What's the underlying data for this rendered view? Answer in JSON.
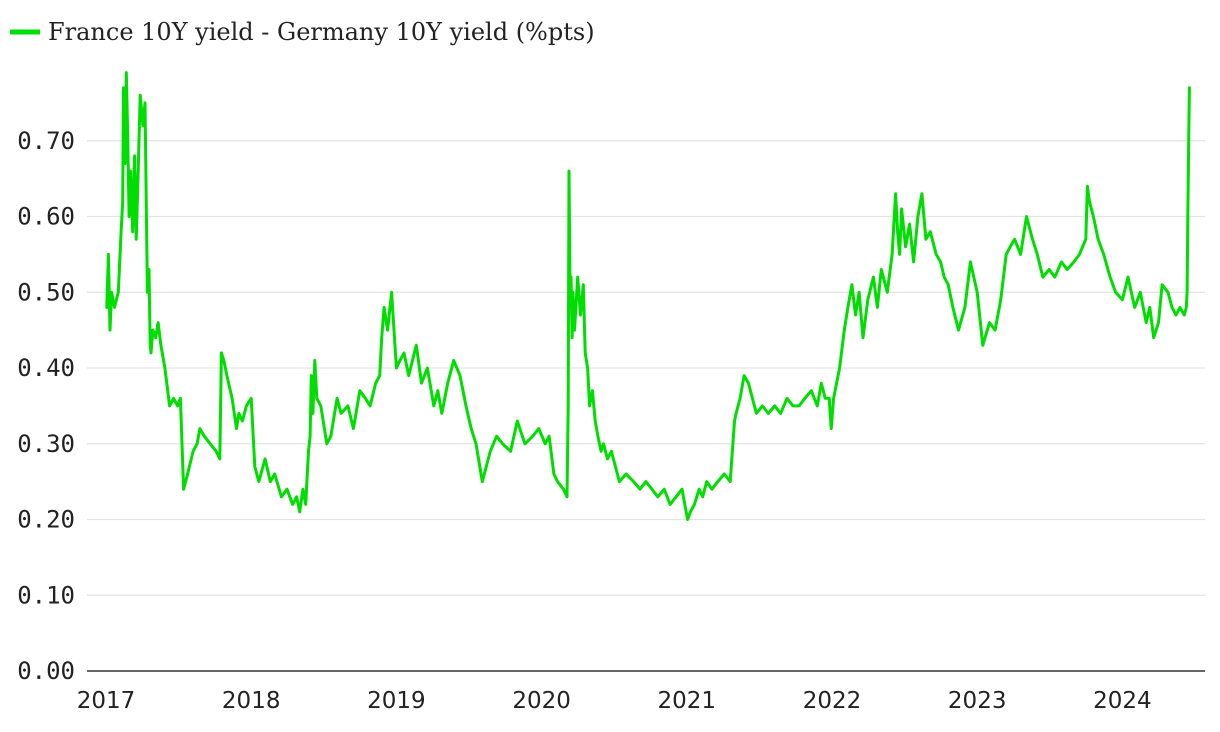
{
  "chart_data": {
    "type": "line",
    "title": "",
    "xlabel": "",
    "ylabel": "",
    "legend_position": "top-left",
    "grid": true,
    "ylim": [
      0.0,
      0.8
    ],
    "xlim": [
      "2017-01-01",
      "2024-07-01"
    ],
    "y_ticks": [
      "0.00",
      "0.10",
      "0.20",
      "0.30",
      "0.40",
      "0.50",
      "0.60",
      "0.70"
    ],
    "y_tick_values": [
      0.0,
      0.1,
      0.2,
      0.3,
      0.4,
      0.5,
      0.6,
      0.7
    ],
    "x_ticks": [
      "2017",
      "2018",
      "2019",
      "2020",
      "2021",
      "2022",
      "2023",
      "2024"
    ],
    "x_tick_values": [
      2017,
      2018,
      2019,
      2020,
      2021,
      2022,
      2023,
      2024
    ],
    "series": [
      {
        "name": "France 10Y yield - Germany 10Y yield (%pts)",
        "color": "#00dd00",
        "x": [
          "2017-01-03",
          "2017-01-07",
          "2017-01-11",
          "2017-01-15",
          "2017-01-22",
          "2017-02-01",
          "2017-02-08",
          "2017-02-12",
          "2017-02-14",
          "2017-02-18",
          "2017-02-21",
          "2017-02-24",
          "2017-02-28",
          "2017-03-04",
          "2017-03-09",
          "2017-03-14",
          "2017-03-18",
          "2017-03-23",
          "2017-03-28",
          "2017-04-04",
          "2017-04-09",
          "2017-04-15",
          "2017-04-19",
          "2017-04-22",
          "2017-04-24",
          "2017-04-29",
          "2017-05-06",
          "2017-05-12",
          "2017-05-19",
          "2017-05-29",
          "2017-06-10",
          "2017-06-20",
          "2017-06-30",
          "2017-07-07",
          "2017-07-15",
          "2017-07-25",
          "2017-08-08",
          "2017-08-18",
          "2017-08-25",
          "2017-09-05",
          "2017-09-20",
          "2017-10-05",
          "2017-10-14",
          "2017-10-18",
          "2017-10-24",
          "2017-11-01",
          "2017-11-14",
          "2017-11-25",
          "2017-12-01",
          "2017-12-10",
          "2017-12-20",
          "2018-01-01",
          "2018-01-10",
          "2018-01-20",
          "2018-02-05",
          "2018-02-18",
          "2018-03-01",
          "2018-03-18",
          "2018-04-01",
          "2018-04-15",
          "2018-04-25",
          "2018-05-03",
          "2018-05-11",
          "2018-05-18",
          "2018-05-25",
          "2018-05-29",
          "2018-06-01",
          "2018-06-05",
          "2018-06-10",
          "2018-06-15",
          "2018-06-25",
          "2018-07-10",
          "2018-07-20",
          "2018-08-05",
          "2018-08-15",
          "2018-09-01",
          "2018-09-15",
          "2018-10-01",
          "2018-10-15",
          "2018-10-27",
          "2018-11-10",
          "2018-11-20",
          "2018-11-25",
          "2018-12-01",
          "2018-12-10",
          "2018-12-20",
          "2019-01-01",
          "2019-01-10",
          "2019-01-20",
          "2019-02-01",
          "2019-02-20",
          "2019-03-05",
          "2019-03-20",
          "2019-04-05",
          "2019-04-15",
          "2019-04-25",
          "2019-05-10",
          "2019-05-25",
          "2019-06-10",
          "2019-06-25",
          "2019-07-08",
          "2019-07-20",
          "2019-08-05",
          "2019-08-15",
          "2019-08-25",
          "2019-09-10",
          "2019-09-25",
          "2019-10-15",
          "2019-11-01",
          "2019-11-20",
          "2019-12-10",
          "2019-12-25",
          "2020-01-10",
          "2020-01-20",
          "2020-02-01",
          "2020-02-10",
          "2020-02-25",
          "2020-03-05",
          "2020-03-08",
          "2020-03-10",
          "2020-03-13",
          "2020-03-15",
          "2020-03-18",
          "2020-03-20",
          "2020-03-24",
          "2020-04-01",
          "2020-04-08",
          "2020-04-15",
          "2020-04-20",
          "2020-04-26",
          "2020-05-01",
          "2020-05-08",
          "2020-05-15",
          "2020-05-22",
          "2020-05-30",
          "2020-06-05",
          "2020-06-15",
          "2020-06-25",
          "2020-07-05",
          "2020-07-15",
          "2020-08-01",
          "2020-08-20",
          "2020-09-05",
          "2020-09-20",
          "2020-10-05",
          "2020-10-20",
          "2020-11-05",
          "2020-11-20",
          "2020-12-05",
          "2020-12-20",
          "2021-01-03",
          "2021-01-10",
          "2021-01-20",
          "2021-02-01",
          "2021-02-10",
          "2021-02-20",
          "2021-03-05",
          "2021-03-20",
          "2021-04-05",
          "2021-04-20",
          "2021-05-01",
          "2021-05-05",
          "2021-05-15",
          "2021-05-25",
          "2021-06-05",
          "2021-06-15",
          "2021-06-25",
          "2021-07-10",
          "2021-07-25",
          "2021-08-10",
          "2021-08-25",
          "2021-09-10",
          "2021-09-25",
          "2021-10-10",
          "2021-10-25",
          "2021-11-10",
          "2021-11-25",
          "2021-12-05",
          "2021-12-15",
          "2021-12-25",
          "2021-12-30",
          "2022-01-05",
          "2022-01-20",
          "2022-02-01",
          "2022-02-10",
          "2022-02-20",
          "2022-03-01",
          "2022-03-10",
          "2022-03-20",
          "2022-04-01",
          "2022-04-15",
          "2022-04-25",
          "2022-05-05",
          "2022-05-20",
          "2022-06-01",
          "2022-06-10",
          "2022-06-15",
          "2022-06-20",
          "2022-06-25",
          "2022-07-05",
          "2022-07-15",
          "2022-07-25",
          "2022-08-05",
          "2022-08-15",
          "2022-08-25",
          "2022-09-05",
          "2022-09-20",
          "2022-10-01",
          "2022-10-10",
          "2022-10-20",
          "2022-11-01",
          "2022-11-15",
          "2022-12-01",
          "2022-12-15",
          "2023-01-01",
          "2023-01-15",
          "2023-02-01",
          "2023-02-15",
          "2023-03-01",
          "2023-03-15",
          "2023-03-25",
          "2023-04-05",
          "2023-04-20",
          "2023-05-05",
          "2023-05-20",
          "2023-06-01",
          "2023-06-15",
          "2023-07-01",
          "2023-07-15",
          "2023-08-01",
          "2023-08-15",
          "2023-09-01",
          "2023-09-15",
          "2023-10-01",
          "2023-10-05",
          "2023-10-10",
          "2023-10-20",
          "2023-11-01",
          "2023-11-15",
          "2023-12-01",
          "2023-12-15",
          "2024-01-01",
          "2024-01-15",
          "2024-02-01",
          "2024-02-15",
          "2024-03-01",
          "2024-03-10",
          "2024-03-20",
          "2024-04-01",
          "2024-04-10",
          "2024-04-25",
          "2024-05-05",
          "2024-05-15",
          "2024-05-25",
          "2024-06-05",
          "2024-06-10",
          "2024-06-12",
          "2024-06-14",
          "2024-06-16",
          "2024-06-18"
        ],
        "values": [
          0.48,
          0.55,
          0.45,
          0.5,
          0.48,
          0.5,
          0.58,
          0.62,
          0.77,
          0.67,
          0.79,
          0.72,
          0.6,
          0.66,
          0.58,
          0.68,
          0.57,
          0.66,
          0.76,
          0.72,
          0.75,
          0.5,
          0.53,
          0.43,
          0.42,
          0.45,
          0.44,
          0.46,
          0.43,
          0.4,
          0.35,
          0.36,
          0.35,
          0.36,
          0.24,
          0.26,
          0.29,
          0.3,
          0.32,
          0.31,
          0.3,
          0.29,
          0.28,
          0.42,
          0.41,
          0.39,
          0.36,
          0.32,
          0.34,
          0.33,
          0.35,
          0.36,
          0.27,
          0.25,
          0.28,
          0.25,
          0.26,
          0.23,
          0.24,
          0.22,
          0.23,
          0.21,
          0.24,
          0.22,
          0.29,
          0.31,
          0.39,
          0.34,
          0.41,
          0.36,
          0.35,
          0.3,
          0.31,
          0.36,
          0.34,
          0.35,
          0.32,
          0.37,
          0.36,
          0.35,
          0.38,
          0.39,
          0.44,
          0.48,
          0.45,
          0.5,
          0.4,
          0.41,
          0.42,
          0.39,
          0.43,
          0.38,
          0.4,
          0.35,
          0.37,
          0.34,
          0.38,
          0.41,
          0.39,
          0.35,
          0.32,
          0.3,
          0.25,
          0.27,
          0.29,
          0.31,
          0.3,
          0.29,
          0.33,
          0.3,
          0.31,
          0.32,
          0.3,
          0.31,
          0.26,
          0.25,
          0.24,
          0.23,
          0.35,
          0.66,
          0.48,
          0.52,
          0.44,
          0.5,
          0.45,
          0.52,
          0.47,
          0.51,
          0.42,
          0.4,
          0.35,
          0.37,
          0.33,
          0.31,
          0.29,
          0.3,
          0.28,
          0.29,
          0.27,
          0.25,
          0.26,
          0.25,
          0.24,
          0.25,
          0.24,
          0.23,
          0.24,
          0.22,
          0.23,
          0.24,
          0.2,
          0.21,
          0.22,
          0.24,
          0.23,
          0.25,
          0.24,
          0.25,
          0.26,
          0.25,
          0.33,
          0.34,
          0.36,
          0.39,
          0.38,
          0.36,
          0.34,
          0.35,
          0.34,
          0.35,
          0.34,
          0.36,
          0.35,
          0.35,
          0.36,
          0.37,
          0.35,
          0.38,
          0.36,
          0.36,
          0.32,
          0.36,
          0.4,
          0.45,
          0.48,
          0.51,
          0.47,
          0.5,
          0.44,
          0.49,
          0.52,
          0.48,
          0.53,
          0.5,
          0.55,
          0.63,
          0.58,
          0.55,
          0.61,
          0.56,
          0.59,
          0.54,
          0.6,
          0.63,
          0.57,
          0.58,
          0.55,
          0.54,
          0.52,
          0.51,
          0.48,
          0.45,
          0.48,
          0.54,
          0.5,
          0.43,
          0.46,
          0.45,
          0.49,
          0.55,
          0.56,
          0.57,
          0.55,
          0.6,
          0.57,
          0.55,
          0.52,
          0.53,
          0.52,
          0.54,
          0.53,
          0.54,
          0.55,
          0.57,
          0.64,
          0.62,
          0.6,
          0.57,
          0.55,
          0.52,
          0.5,
          0.49,
          0.52,
          0.48,
          0.5,
          0.46,
          0.48,
          0.44,
          0.46,
          0.51,
          0.5,
          0.48,
          0.47,
          0.48,
          0.47,
          0.48,
          0.5,
          0.61,
          0.7,
          0.77
        ]
      }
    ]
  }
}
